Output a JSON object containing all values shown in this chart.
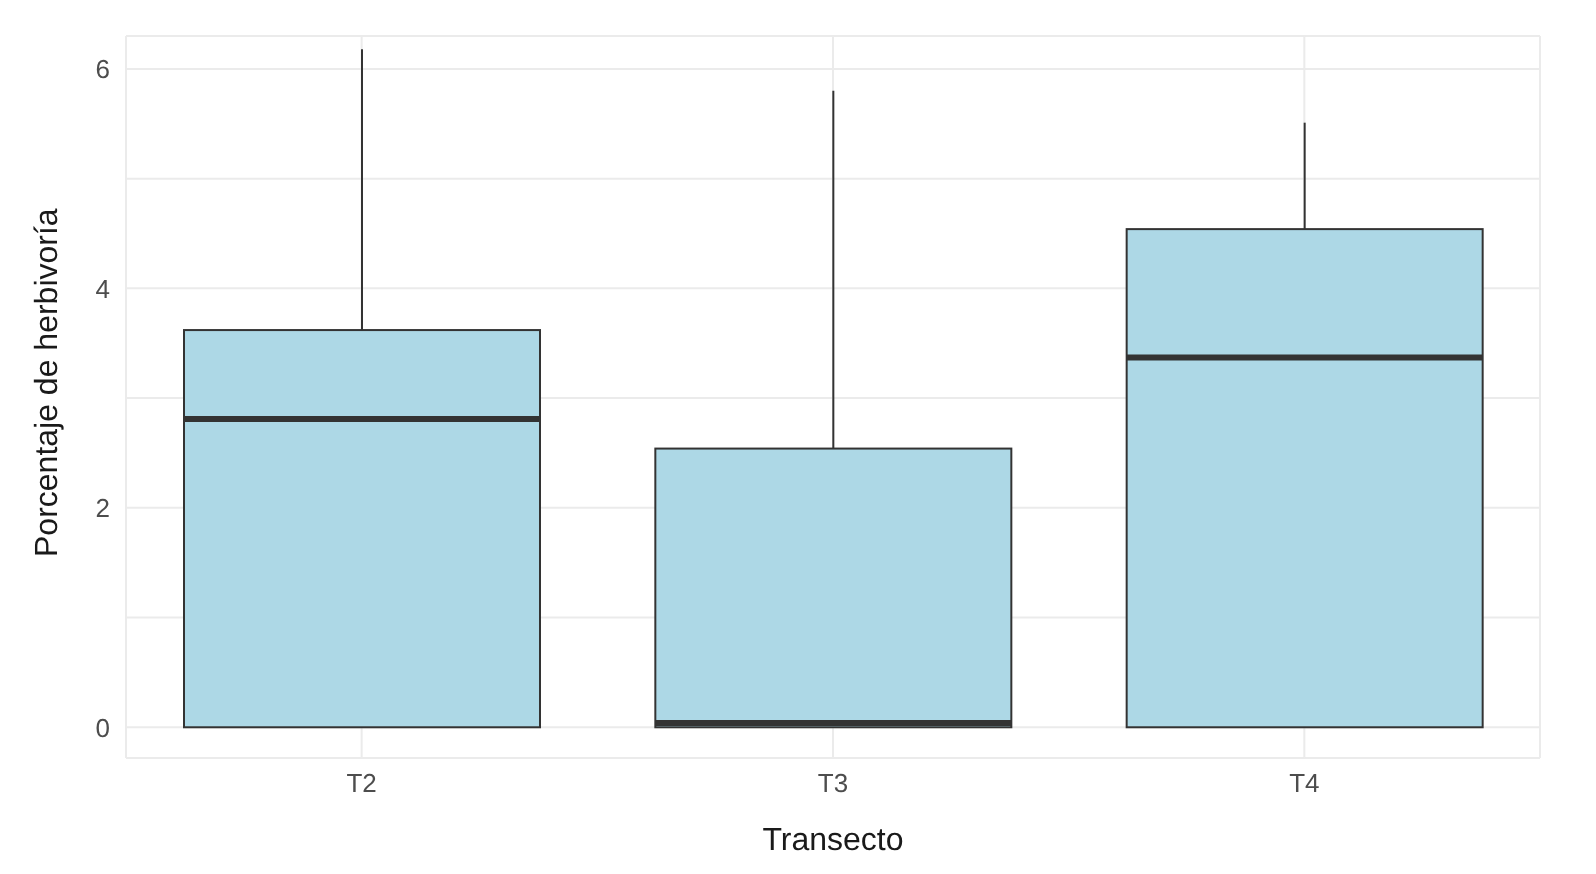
{
  "chart_data": {
    "type": "box",
    "xlabel": "Transecto",
    "ylabel": "Porcentaje de herbivoría",
    "categories": [
      "T2",
      "T3",
      "T4"
    ],
    "color": "#add8e6",
    "boxes": [
      {
        "low": 0,
        "q1": 0,
        "median": 2.81,
        "q3": 3.62,
        "high": 6.18
      },
      {
        "low": 0,
        "q1": 0,
        "median": 0.04,
        "q3": 2.54,
        "high": 5.8
      },
      {
        "low": 0,
        "q1": 0,
        "median": 3.37,
        "q3": 4.54,
        "high": 5.51
      }
    ],
    "ylim": [
      -0.28,
      6.3
    ],
    "yticks": [
      0,
      {
        "value": 1,
        "label": null
      },
      2,
      {
        "value": 3,
        "label": null
      },
      4,
      {
        "value": 5,
        "label": null
      },
      6
    ],
    "grid": true
  }
}
